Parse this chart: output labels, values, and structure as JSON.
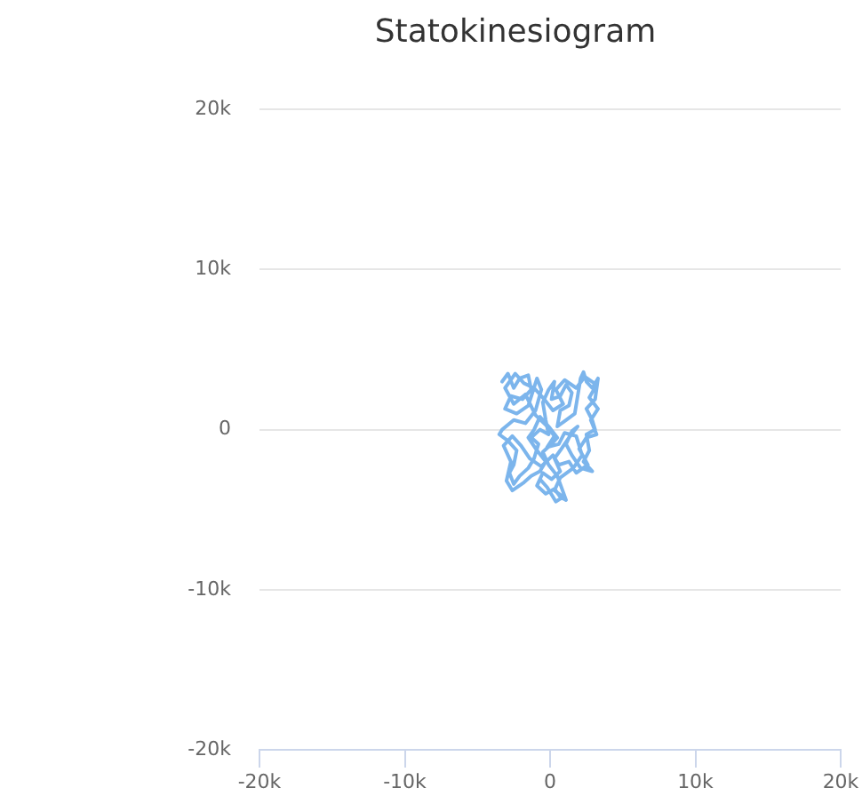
{
  "chart_data": {
    "type": "line",
    "title": "Statokinesiogram",
    "x": [
      -3300,
      -2900,
      -2500,
      -2100,
      -1500,
      -1300,
      -1900,
      -2700,
      -3100,
      -2300,
      -1500,
      -900,
      -600,
      -1000,
      -1700,
      -2500,
      -3300,
      -3500,
      -2900,
      -2300,
      -2500,
      -2800,
      -2500,
      -2100,
      -1500,
      -1100,
      -800,
      -1300,
      -700,
      -100,
      -300,
      -500,
      -100,
      300,
      100,
      700,
      1100,
      1500,
      1300,
      700,
      500,
      1100,
      1700,
      1900,
      2100,
      2300,
      2500,
      2900,
      3300,
      3100,
      2500,
      2900,
      3100,
      2500,
      2700,
      2300,
      2900,
      2100,
      1500,
      1100,
      1500,
      1900,
      1300,
      700,
      300,
      700,
      100,
      -500,
      -900,
      -300,
      300,
      700,
      1100,
      900,
      500,
      -100,
      -500,
      100,
      500,
      -100,
      -700,
      -1100,
      -1500,
      -900,
      -300,
      -700,
      -1300,
      -1800,
      -2600,
      -3000,
      -2700,
      -3200,
      -2600,
      -2000,
      -1400,
      -600,
      200,
      600,
      1300,
      1800,
      2600,
      2000,
      2500,
      3200,
      2800,
      3300,
      2700,
      3200,
      2400,
      1800,
      1000,
      400,
      900,
      200,
      -400,
      -1100,
      -1800,
      -2400,
      -3100,
      -2500,
      -1700,
      -1000,
      -300,
      300,
      -200,
      600,
      1000,
      1800,
      2200,
      1600,
      700,
      300,
      900,
      400,
      -200,
      -700
    ],
    "values": [
      3000,
      3500,
      2600,
      3200,
      3400,
      2500,
      1900,
      2100,
      1300,
      1000,
      1500,
      3200,
      2500,
      1200,
      400,
      600,
      0,
      -300,
      -700,
      -1300,
      -2200,
      -2700,
      -3400,
      -2900,
      -2400,
      -1800,
      -900,
      -500,
      0,
      -300,
      600,
      1700,
      2500,
      3000,
      1900,
      2100,
      2800,
      2300,
      1500,
      1200,
      200,
      600,
      1000,
      2100,
      3200,
      3600,
      3000,
      2600,
      3200,
      1900,
      1300,
      600,
      0,
      -300,
      -1300,
      -2000,
      -2600,
      -2400,
      -1600,
      -900,
      -100,
      200,
      -500,
      -1300,
      -1800,
      -2600,
      -3100,
      -2700,
      -3500,
      -4000,
      -3700,
      -4200,
      -4400,
      -3900,
      -2900,
      -2200,
      -1400,
      -900,
      -500,
      200,
      800,
      0,
      -500,
      -1300,
      -2000,
      -2600,
      -2900,
      -3300,
      -3800,
      -3200,
      -2000,
      -1000,
      -400,
      -1000,
      -1800,
      -2300,
      -1600,
      -2200,
      -2000,
      -2700,
      -2200,
      -1200,
      -500,
      -300,
      600,
      1300,
      2000,
      2800,
      3300,
      2600,
      3100,
      2500,
      1600,
      1200,
      1900,
      2600,
      2900,
      3500,
      2600,
      1600,
      2200,
      900,
      300,
      -400,
      -1100,
      -900,
      -200,
      -400,
      -1600,
      -2400,
      -3000,
      -3800,
      -4200,
      -4500,
      -3600,
      -3100
    ],
    "color": "#7cb5ec",
    "marker": "none",
    "line_style": "solid",
    "xlim": [
      -20000,
      20000
    ],
    "xticks": [
      {
        "value": -20000,
        "label": "-20k"
      },
      {
        "value": -10000,
        "label": "-10k"
      },
      0,
      {
        "value": 10000,
        "label": "10k"
      },
      {
        "value": 20000,
        "label": "20k"
      }
    ],
    "ylim": [
      -20000,
      20000
    ],
    "yticks": [
      {
        "value": -20000,
        "label": "-20k"
      },
      {
        "value": -10000,
        "label": "-10k"
      },
      0,
      {
        "value": 10000,
        "label": "10k"
      },
      {
        "value": 20000,
        "label": "20k"
      }
    ],
    "grid": "y"
  }
}
